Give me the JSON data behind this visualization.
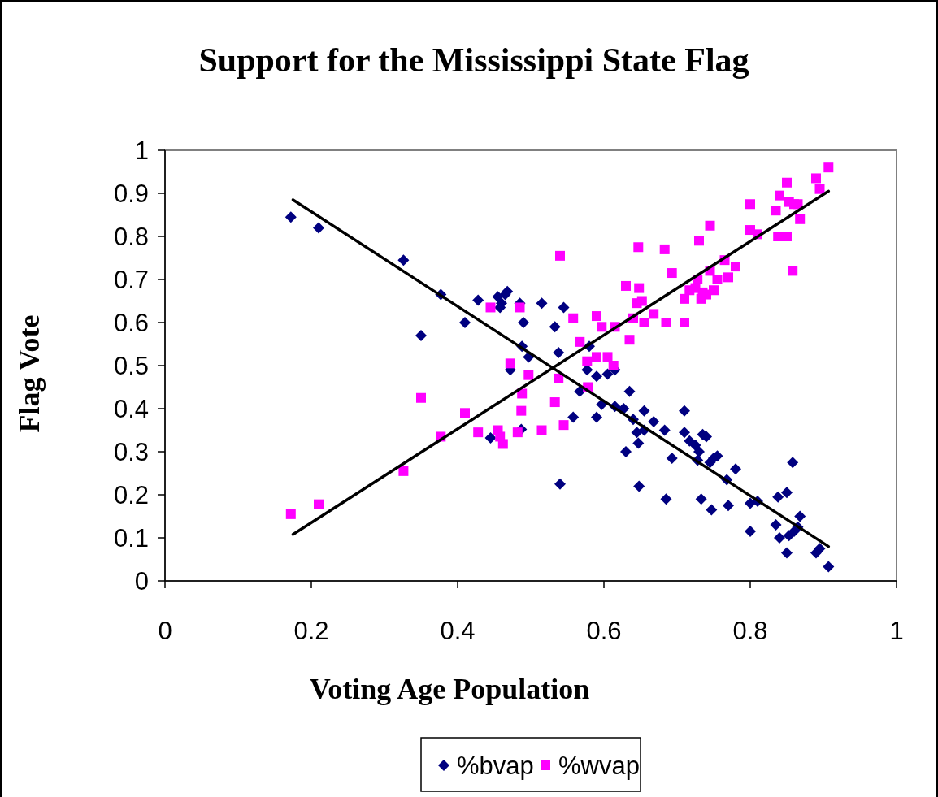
{
  "chart_data": {
    "type": "scatter",
    "title": "Support for the Mississippi State Flag",
    "xlabel": "Voting Age Population",
    "ylabel": "Flag Vote",
    "xlim": [
      0,
      1
    ],
    "xticks": [
      0,
      0.2,
      0.4,
      0.6,
      0.8,
      1
    ],
    "ylim": [
      0,
      1
    ],
    "yticks": [
      0,
      0.1,
      0.2,
      0.3,
      0.4,
      0.5,
      0.6,
      0.7,
      0.8,
      0.9,
      1
    ],
    "grid": false,
    "legend": "bottom",
    "series": [
      {
        "name": "%bvap",
        "color": "#000080",
        "marker": "diamond",
        "x": [
          0.172,
          0.21,
          0.326,
          0.35,
          0.377,
          0.41,
          0.428,
          0.445,
          0.455,
          0.458,
          0.46,
          0.465,
          0.468,
          0.472,
          0.485,
          0.487,
          0.488,
          0.49,
          0.497,
          0.515,
          0.533,
          0.538,
          0.54,
          0.545,
          0.558,
          0.567,
          0.577,
          0.58,
          0.59,
          0.59,
          0.597,
          0.605,
          0.615,
          0.615,
          0.627,
          0.63,
          0.635,
          0.64,
          0.645,
          0.647,
          0.648,
          0.655,
          0.655,
          0.668,
          0.683,
          0.685,
          0.693,
          0.71,
          0.71,
          0.717,
          0.725,
          0.728,
          0.73,
          0.733,
          0.735,
          0.74,
          0.745,
          0.747,
          0.75,
          0.755,
          0.768,
          0.77,
          0.78,
          0.8,
          0.8,
          0.81,
          0.835,
          0.838,
          0.84,
          0.85,
          0.85,
          0.853,
          0.858,
          0.86,
          0.865,
          0.868,
          0.89,
          0.895,
          0.907
        ],
        "values": [
          0.845,
          0.82,
          0.745,
          0.57,
          0.665,
          0.6,
          0.652,
          0.332,
          0.66,
          0.635,
          0.645,
          0.665,
          0.672,
          0.49,
          0.645,
          0.352,
          0.545,
          0.6,
          0.52,
          0.645,
          0.59,
          0.53,
          0.225,
          0.635,
          0.38,
          0.44,
          0.49,
          0.545,
          0.475,
          0.38,
          0.41,
          0.48,
          0.405,
          0.49,
          0.4,
          0.3,
          0.44,
          0.375,
          0.345,
          0.32,
          0.22,
          0.395,
          0.35,
          0.37,
          0.35,
          0.19,
          0.285,
          0.395,
          0.345,
          0.325,
          0.315,
          0.28,
          0.3,
          0.19,
          0.34,
          0.335,
          0.275,
          0.165,
          0.285,
          0.29,
          0.235,
          0.175,
          0.26,
          0.115,
          0.18,
          0.185,
          0.13,
          0.195,
          0.1,
          0.205,
          0.065,
          0.105,
          0.275,
          0.115,
          0.125,
          0.15,
          0.065,
          0.075,
          0.033
        ]
      },
      {
        "name": "%wvap",
        "color": "#ff00ff",
        "marker": "square",
        "x": [
          0.172,
          0.21,
          0.326,
          0.35,
          0.377,
          0.41,
          0.428,
          0.445,
          0.455,
          0.458,
          0.462,
          0.472,
          0.482,
          0.485,
          0.487,
          0.488,
          0.497,
          0.515,
          0.533,
          0.538,
          0.54,
          0.545,
          0.558,
          0.567,
          0.577,
          0.578,
          0.59,
          0.59,
          0.597,
          0.605,
          0.613,
          0.615,
          0.63,
          0.635,
          0.64,
          0.645,
          0.647,
          0.648,
          0.652,
          0.655,
          0.668,
          0.683,
          0.685,
          0.693,
          0.71,
          0.71,
          0.717,
          0.725,
          0.728,
          0.73,
          0.733,
          0.735,
          0.74,
          0.745,
          0.745,
          0.75,
          0.755,
          0.765,
          0.77,
          0.78,
          0.8,
          0.8,
          0.81,
          0.835,
          0.838,
          0.84,
          0.85,
          0.85,
          0.853,
          0.858,
          0.86,
          0.865,
          0.868,
          0.89,
          0.895,
          0.907
        ],
        "values": [
          0.155,
          0.178,
          0.255,
          0.425,
          0.335,
          0.39,
          0.345,
          0.635,
          0.35,
          0.335,
          0.318,
          0.505,
          0.345,
          0.635,
          0.395,
          0.435,
          0.478,
          0.35,
          0.415,
          0.47,
          0.755,
          0.362,
          0.61,
          0.555,
          0.51,
          0.45,
          0.52,
          0.615,
          0.59,
          0.52,
          0.5,
          0.59,
          0.685,
          0.56,
          0.61,
          0.645,
          0.775,
          0.68,
          0.65,
          0.6,
          0.62,
          0.77,
          0.6,
          0.715,
          0.655,
          0.6,
          0.675,
          0.68,
          0.7,
          0.79,
          0.655,
          0.67,
          0.665,
          0.825,
          0.72,
          0.675,
          0.7,
          0.745,
          0.705,
          0.73,
          0.875,
          0.815,
          0.805,
          0.86,
          0.8,
          0.895,
          0.925,
          0.8,
          0.88,
          0.72,
          0.875,
          0.875,
          0.84,
          0.935,
          0.91,
          0.96
        ]
      },
      {
        "type": "line",
        "color": "#000000",
        "marker": "none",
        "x": [
          0.175,
          0.907
        ],
        "values": [
          0.885,
          0.08
        ]
      },
      {
        "type": "line",
        "color": "#000000",
        "marker": "none",
        "x": [
          0.175,
          0.907
        ],
        "values": [
          0.108,
          0.905
        ]
      }
    ]
  }
}
